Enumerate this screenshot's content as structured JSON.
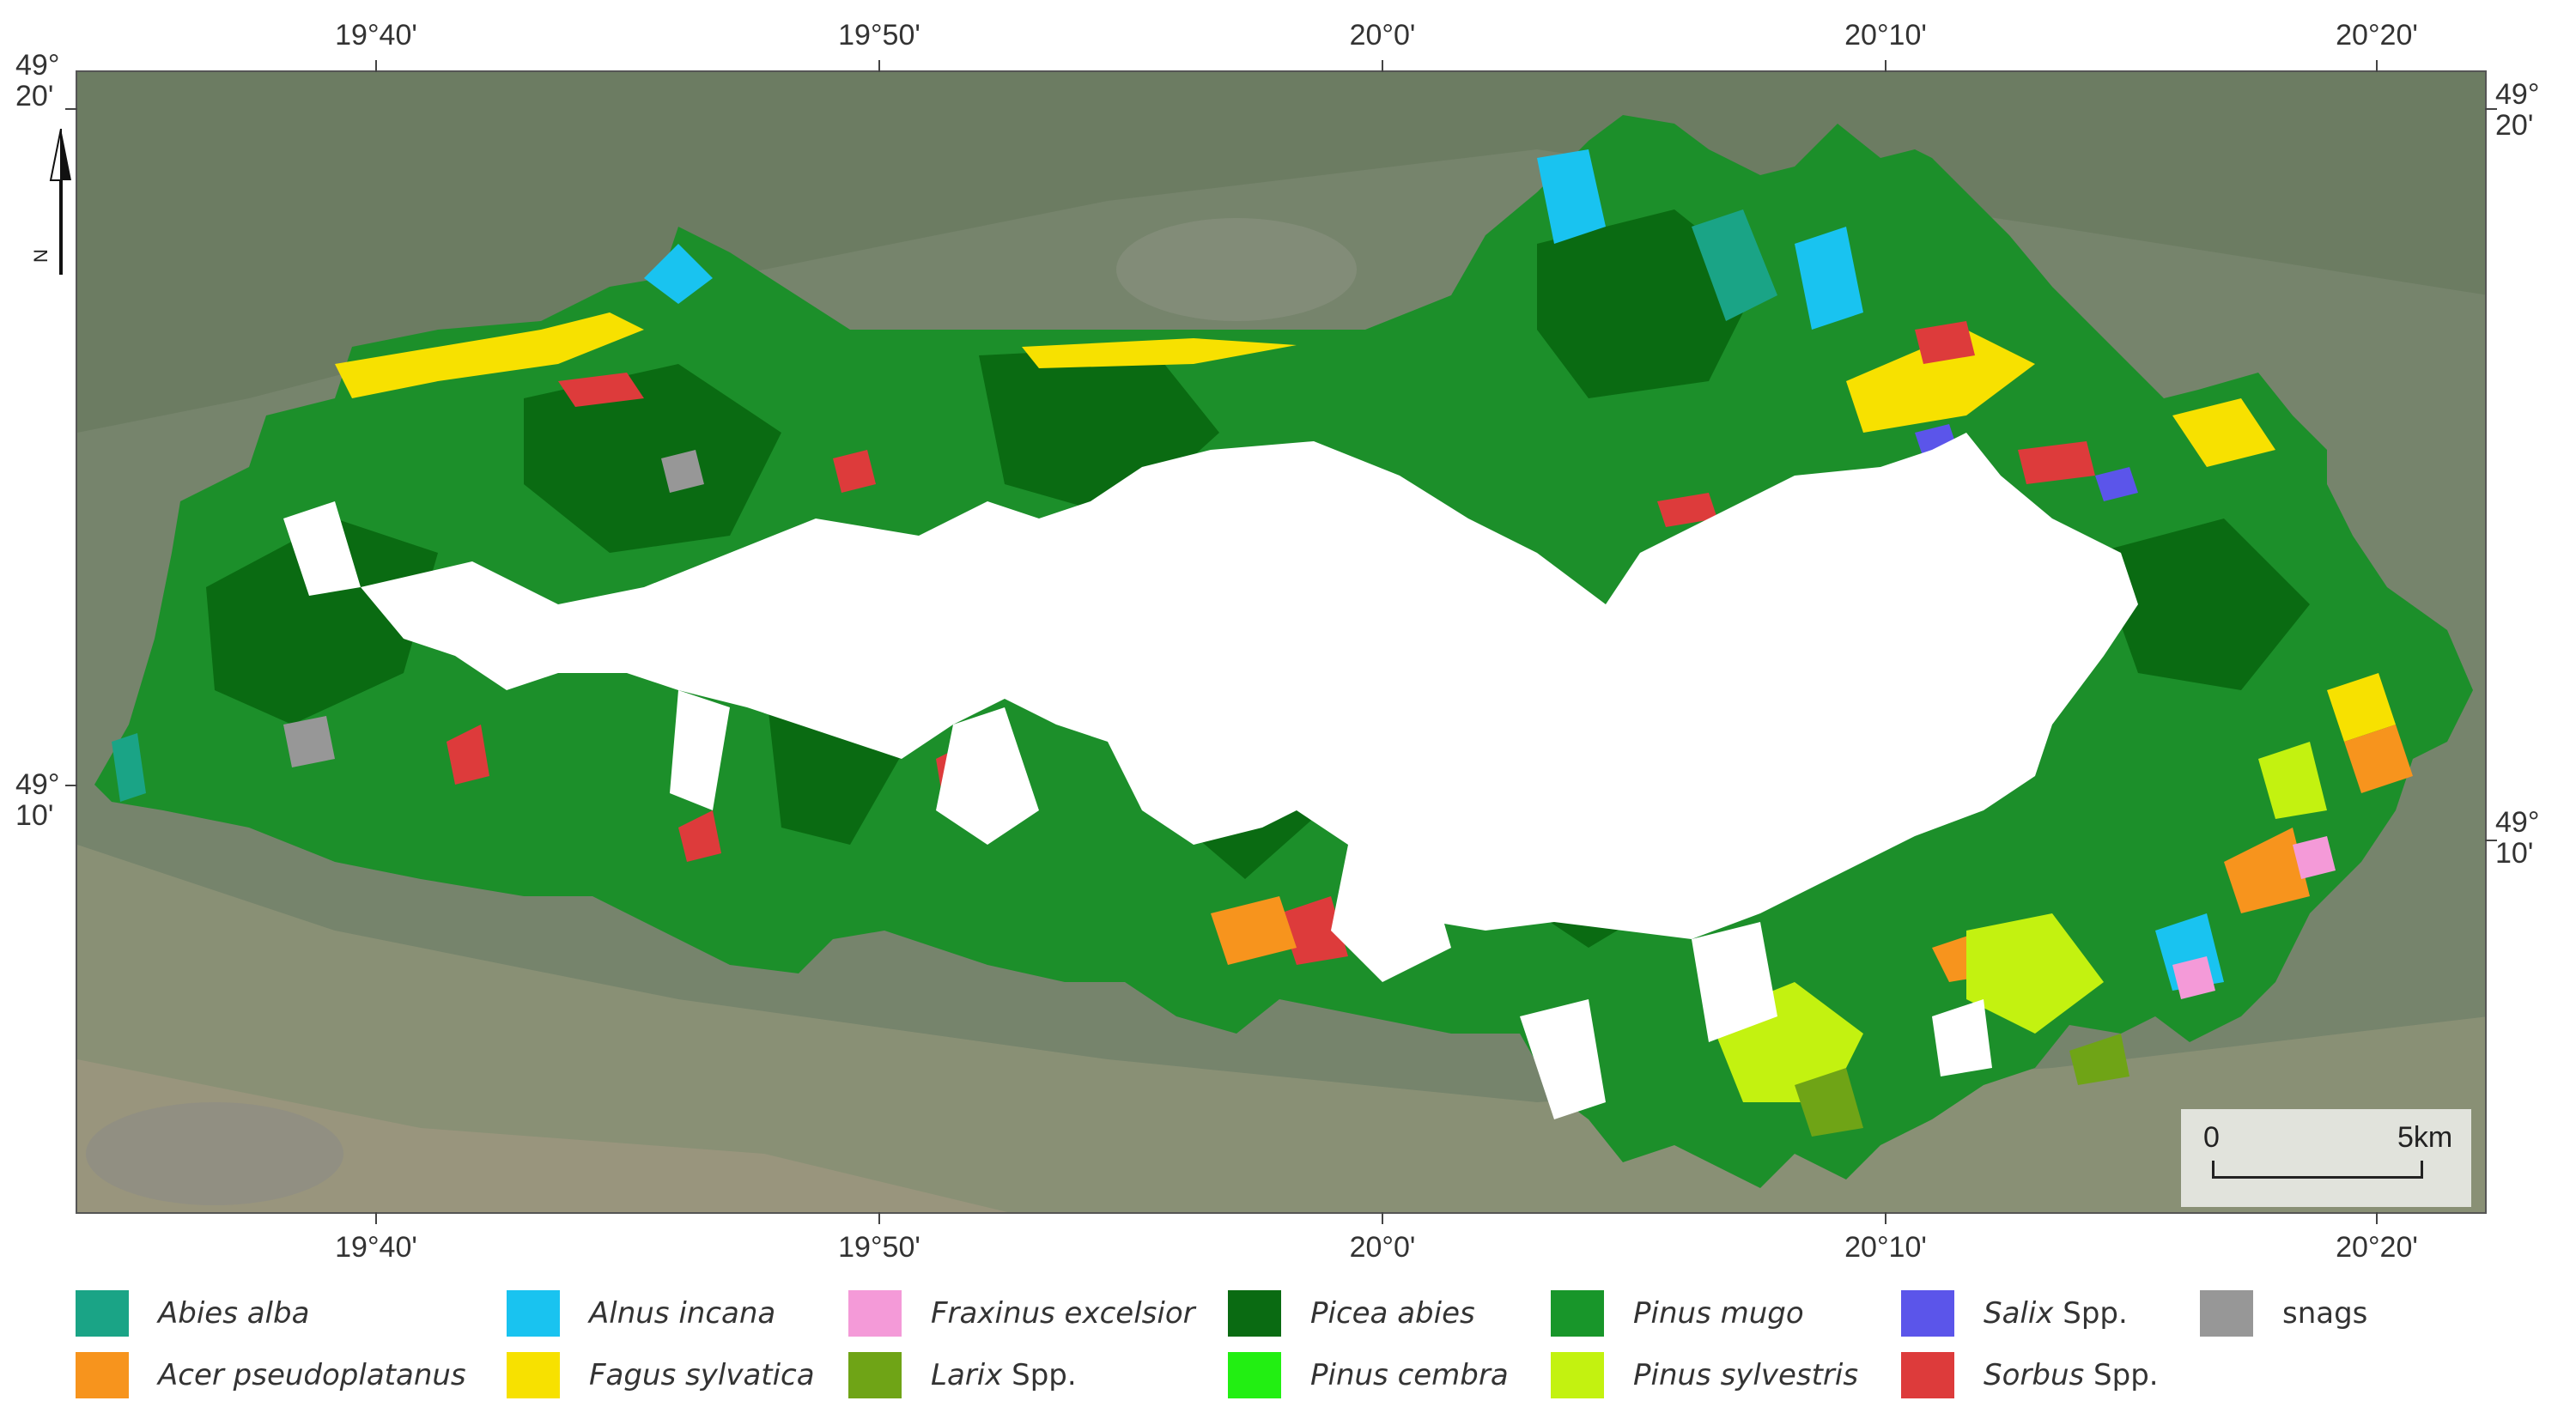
{
  "map": {
    "top_longitude_labels": [
      "19°40'",
      "19°50'",
      "20°0'",
      "20°10'",
      "20°20'"
    ],
    "bottom_longitude_labels": [
      "19°40'",
      "19°50'",
      "20°0'",
      "20°10'",
      "20°20'"
    ],
    "left_latitude_labels": [
      {
        "deg": "49°",
        "min": "20'"
      },
      {
        "deg": "49°",
        "min": "10'"
      }
    ],
    "right_latitude_labels": [
      {
        "deg": "49°",
        "min": "20'"
      },
      {
        "deg": "49°",
        "min": "10'"
      }
    ],
    "north_arrow_label": "N",
    "scale": {
      "start": "0",
      "end": "5km"
    }
  },
  "legend": [
    {
      "italic": "Abies alba",
      "suffix": "",
      "color": "#1aa486"
    },
    {
      "italic": "Acer pseudoplatanus",
      "suffix": "",
      "color": "#f7941d"
    },
    {
      "italic": "Alnus incana",
      "suffix": "",
      "color": "#19c3f0"
    },
    {
      "italic": "Fagus sylvatica",
      "suffix": "",
      "color": "#f7e100"
    },
    {
      "italic": "Fraxinus excelsior",
      "suffix": "",
      "color": "#f49ad8"
    },
    {
      "italic": "Larix",
      "suffix": " Spp.",
      "color": "#6fa416"
    },
    {
      "italic": "Picea abies",
      "suffix": "",
      "color": "#0a6b12"
    },
    {
      "italic": "Pinus cembra",
      "suffix": "",
      "color": "#22ef12"
    },
    {
      "italic": "Pinus mugo",
      "suffix": "",
      "color": "#18962a"
    },
    {
      "italic": "Pinus sylvestris",
      "suffix": "",
      "color": "#c3f210"
    },
    {
      "italic": "Salix",
      "suffix": " Spp.",
      "color": "#5b55ea"
    },
    {
      "italic": "Sorbus",
      "suffix": " Spp.",
      "color": "#dd3b3b"
    },
    {
      "italic": "",
      "suffix": "snags",
      "color": "#979797"
    }
  ]
}
